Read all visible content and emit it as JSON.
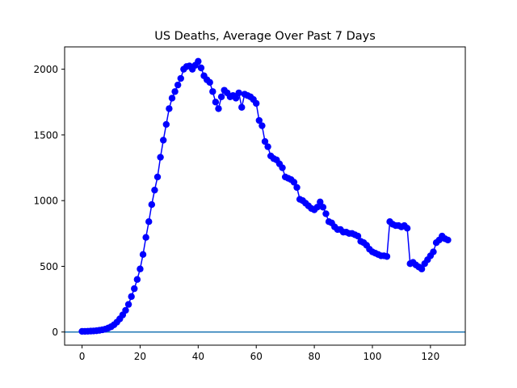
{
  "chart_data": {
    "type": "line",
    "title": "US Deaths, Average Over Past 7 Days",
    "xlabel": "",
    "ylabel": "",
    "xlim": [
      -6,
      132
    ],
    "ylim": [
      -100,
      2170
    ],
    "xticks": [
      0,
      20,
      40,
      60,
      80,
      100,
      120
    ],
    "yticks": [
      0,
      500,
      1000,
      1500,
      2000
    ],
    "grid": false,
    "line_color": "#0000ff",
    "baseline_color": "#1f77b4",
    "baseline_y": 0,
    "x": [
      0,
      1,
      2,
      3,
      4,
      5,
      6,
      7,
      8,
      9,
      10,
      11,
      12,
      13,
      14,
      15,
      16,
      17,
      18,
      19,
      20,
      21,
      22,
      23,
      24,
      25,
      26,
      27,
      28,
      29,
      30,
      31,
      32,
      33,
      34,
      35,
      36,
      37,
      38,
      39,
      40,
      41,
      42,
      43,
      44,
      45,
      46,
      47,
      48,
      49,
      50,
      51,
      52,
      53,
      54,
      55,
      56,
      57,
      58,
      59,
      60,
      61,
      62,
      63,
      64,
      65,
      66,
      67,
      68,
      69,
      70,
      71,
      72,
      73,
      74,
      75,
      76,
      77,
      78,
      79,
      80,
      81,
      82,
      83,
      84,
      85,
      86,
      87,
      88,
      89,
      90,
      91,
      92,
      93,
      94,
      95,
      96,
      97,
      98,
      99,
      100,
      101,
      102,
      103,
      104,
      105,
      106,
      107,
      108,
      109,
      110,
      111,
      112,
      113,
      114,
      115,
      116,
      117,
      118,
      119,
      120,
      121,
      122,
      123,
      124,
      125,
      126
    ],
    "y": [
      5,
      5,
      6,
      7,
      8,
      10,
      13,
      17,
      22,
      30,
      40,
      55,
      75,
      100,
      130,
      165,
      210,
      270,
      330,
      400,
      480,
      590,
      720,
      840,
      970,
      1080,
      1180,
      1330,
      1460,
      1580,
      1700,
      1780,
      1830,
      1880,
      1930,
      2000,
      2020,
      2025,
      2000,
      2030,
      2060,
      2010,
      1950,
      1920,
      1900,
      1830,
      1750,
      1700,
      1790,
      1840,
      1820,
      1790,
      1800,
      1780,
      1820,
      1710,
      1810,
      1800,
      1790,
      1770,
      1740,
      1610,
      1570,
      1450,
      1410,
      1340,
      1320,
      1310,
      1280,
      1250,
      1180,
      1170,
      1160,
      1140,
      1100,
      1010,
      1000,
      980,
      960,
      940,
      930,
      950,
      990,
      950,
      900,
      840,
      830,
      800,
      780,
      780,
      760,
      760,
      750,
      750,
      740,
      730,
      690,
      680,
      660,
      630,
      610,
      600,
      590,
      580,
      580,
      575,
      840,
      820,
      810,
      810,
      800,
      810,
      790,
      520,
      530,
      510,
      495,
      480,
      520,
      550,
      580,
      610,
      680,
      700,
      730,
      710,
      700
    ]
  }
}
